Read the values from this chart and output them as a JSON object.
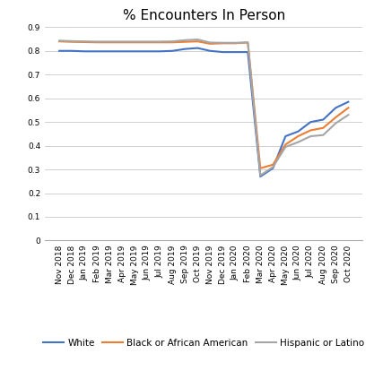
{
  "title": "% Encounters In Person",
  "ylim": [
    0,
    0.9
  ],
  "yticks": [
    0,
    0.1,
    0.2,
    0.3,
    0.4,
    0.5,
    0.6,
    0.7,
    0.8,
    0.9
  ],
  "ytick_labels": [
    "0",
    "0.1",
    "0.2",
    "0.3",
    "0.4",
    "0.5",
    "0.6",
    "0.7",
    "0.8",
    "0.9"
  ],
  "labels": [
    "Nov 2018",
    "Dec 2018",
    "Jan 2019",
    "Feb 2019",
    "Mar 2019",
    "Apr 2019",
    "May 2019",
    "Jun 2019",
    "Jul 2019",
    "Aug 2019",
    "Sep 2019",
    "Oct 2019",
    "Nov 2019",
    "Dec 2019",
    "Jan 2020",
    "Feb 2020",
    "Mar 2020",
    "Apr 2020",
    "May 2020",
    "Jun 2020",
    "Jul 2020",
    "Aug 2020",
    "Sep 2020",
    "Oct 2020"
  ],
  "white": [
    0.8,
    0.8,
    0.798,
    0.798,
    0.798,
    0.798,
    0.798,
    0.798,
    0.798,
    0.8,
    0.808,
    0.812,
    0.8,
    0.795,
    0.795,
    0.795,
    0.27,
    0.305,
    0.44,
    0.46,
    0.5,
    0.51,
    0.56,
    0.585
  ],
  "black": [
    0.84,
    0.838,
    0.837,
    0.836,
    0.836,
    0.836,
    0.836,
    0.836,
    0.836,
    0.836,
    0.838,
    0.84,
    0.83,
    0.832,
    0.832,
    0.835,
    0.305,
    0.32,
    0.405,
    0.44,
    0.465,
    0.475,
    0.52,
    0.56
  ],
  "hispanic": [
    0.843,
    0.841,
    0.84,
    0.839,
    0.839,
    0.839,
    0.839,
    0.839,
    0.839,
    0.84,
    0.845,
    0.848,
    0.835,
    0.834,
    0.834,
    0.836,
    0.275,
    0.31,
    0.395,
    0.415,
    0.44,
    0.445,
    0.495,
    0.53
  ],
  "white_color": "#4472C4",
  "black_color": "#ED7D31",
  "hispanic_color": "#A5A5A5",
  "legend_labels": [
    "White",
    "Black or African American",
    "Hispanic or Latino"
  ],
  "background_color": "#FFFFFF",
  "grid_color": "#D0D0D0",
  "title_fontsize": 11,
  "tick_fontsize": 6.5,
  "legend_fontsize": 7.5
}
